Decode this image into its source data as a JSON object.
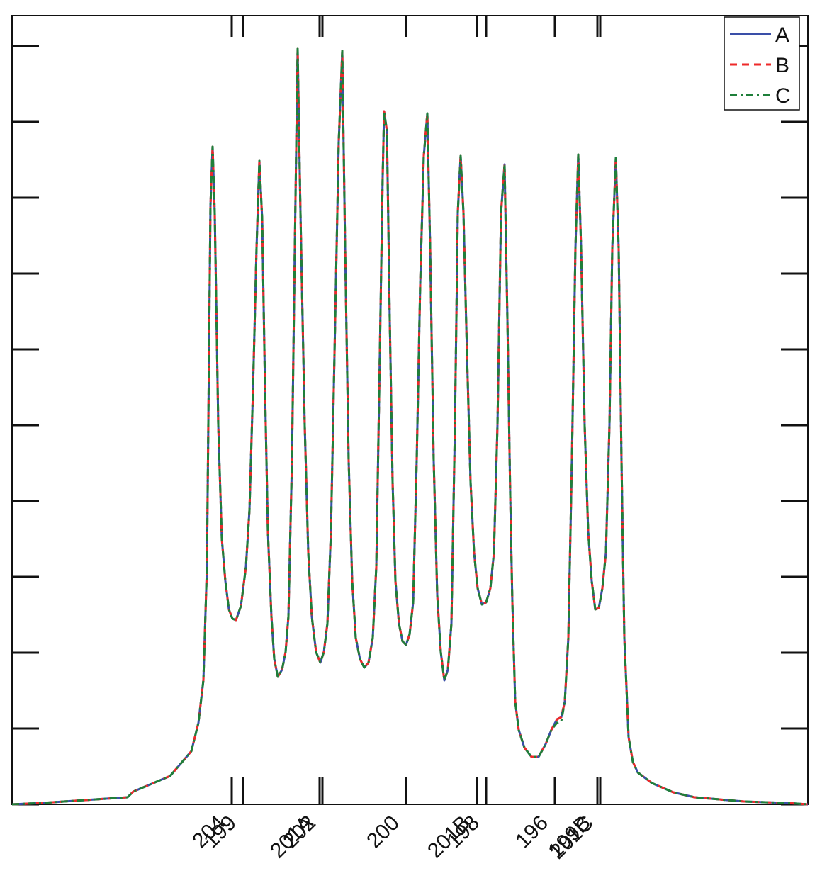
{
  "chart_data": {
    "type": "line",
    "x": [
      0,
      43,
      163,
      171,
      223,
      253,
      263,
      270,
      275,
      280,
      283,
      286,
      291,
      296,
      301,
      306,
      311,
      316,
      323,
      330,
      335,
      340,
      345,
      349,
      353,
      357,
      361,
      366,
      370,
      375,
      381,
      386,
      390,
      395,
      399,
      403,
      407,
      413,
      418,
      423,
      429,
      435,
      440,
      445,
      450,
      455,
      461,
      466,
      470,
      475,
      480,
      485,
      491,
      497,
      503,
      509,
      514,
      519,
      523,
      525,
      529,
      533,
      537,
      541,
      546,
      551,
      556,
      561,
      566,
      571,
      576,
      581,
      586,
      590,
      595,
      600,
      605,
      610,
      615,
      620,
      625,
      629,
      633,
      637,
      642,
      647,
      652,
      657,
      663,
      669,
      675,
      680,
      685,
      690,
      695,
      699,
      703,
      706,
      710,
      715,
      723,
      733,
      743,
      753,
      761,
      769,
      775,
      780,
      785,
      790,
      795,
      799,
      803,
      808,
      813,
      818,
      823,
      828,
      833,
      838,
      843,
      847,
      852,
      856,
      860,
      864,
      870,
      876,
      883,
      903,
      933,
      963,
      1033,
      1093,
      1123
    ],
    "series": [
      {
        "name": "A",
        "color": "#3a4fa8",
        "dash": "solid",
        "values": [
          0,
          2,
          10,
          18,
          40,
          75,
          115,
          175,
          335,
          845,
          928,
          835,
          535,
          375,
          315,
          275,
          262,
          260,
          280,
          335,
          415,
          585,
          785,
          908,
          825,
          585,
          385,
          265,
          205,
          180,
          190,
          215,
          265,
          485,
          785,
          1066,
          835,
          535,
          355,
          265,
          215,
          200,
          215,
          255,
          385,
          635,
          935,
          1063,
          785,
          485,
          315,
          235,
          205,
          193,
          200,
          235,
          335,
          635,
          885,
          978,
          950,
          685,
          455,
          315,
          255,
          230,
          225,
          240,
          285,
          485,
          735,
          915,
          975,
          785,
          485,
          295,
          215,
          175,
          190,
          255,
          535,
          835,
          915,
          835,
          635,
          455,
          355,
          305,
          282,
          285,
          305,
          355,
          535,
          835,
          903,
          685,
          435,
          285,
          145,
          105,
          80,
          67,
          67,
          85,
          105,
          120,
          123,
          145,
          235,
          485,
          785,
          917,
          785,
          535,
          385,
          315,
          275,
          277,
          305,
          355,
          535,
          785,
          912,
          785,
          485,
          235,
          95,
          60,
          45,
          30,
          17,
          10,
          4,
          2,
          0
        ]
      },
      {
        "name": "B",
        "color": "#ee2a2a",
        "dash": "dashed",
        "values": [
          0,
          2,
          10,
          18,
          40,
          75,
          115,
          175,
          335,
          845,
          928,
          835,
          535,
          375,
          315,
          275,
          262,
          260,
          280,
          335,
          415,
          585,
          785,
          908,
          825,
          585,
          385,
          265,
          205,
          180,
          190,
          215,
          265,
          485,
          785,
          1066,
          835,
          535,
          355,
          265,
          215,
          200,
          215,
          255,
          385,
          635,
          935,
          1063,
          785,
          485,
          315,
          235,
          205,
          193,
          200,
          235,
          335,
          635,
          885,
          978,
          950,
          685,
          455,
          315,
          255,
          230,
          225,
          240,
          285,
          485,
          735,
          915,
          975,
          785,
          485,
          295,
          215,
          175,
          190,
          255,
          535,
          835,
          915,
          835,
          635,
          455,
          355,
          305,
          282,
          285,
          305,
          355,
          535,
          835,
          903,
          685,
          435,
          285,
          145,
          105,
          80,
          67,
          67,
          85,
          105,
          120,
          123,
          145,
          235,
          485,
          785,
          917,
          785,
          535,
          385,
          315,
          275,
          277,
          305,
          355,
          535,
          785,
          912,
          785,
          485,
          235,
          95,
          60,
          45,
          30,
          17,
          10,
          4,
          2,
          0
        ]
      },
      {
        "name": "C",
        "color": "#1f7f3a",
        "dash": "dashdot",
        "values": [
          0,
          2,
          10,
          18,
          40,
          75,
          115,
          175,
          335,
          845,
          928,
          835,
          535,
          375,
          315,
          275,
          262,
          260,
          280,
          335,
          415,
          585,
          785,
          908,
          825,
          585,
          385,
          265,
          205,
          180,
          190,
          215,
          265,
          485,
          785,
          1066,
          835,
          535,
          355,
          265,
          215,
          200,
          215,
          255,
          385,
          635,
          935,
          1063,
          785,
          485,
          315,
          235,
          205,
          193,
          200,
          235,
          335,
          635,
          885,
          978,
          950,
          685,
          455,
          315,
          255,
          230,
          225,
          240,
          285,
          485,
          735,
          915,
          975,
          785,
          485,
          295,
          215,
          175,
          190,
          255,
          535,
          835,
          915,
          835,
          635,
          455,
          355,
          305,
          282,
          285,
          305,
          355,
          535,
          835,
          903,
          685,
          435,
          285,
          145,
          105,
          80,
          67,
          67,
          85,
          105,
          115,
          117,
          145,
          235,
          485,
          785,
          917,
          785,
          535,
          385,
          315,
          275,
          277,
          305,
          355,
          535,
          785,
          912,
          785,
          485,
          235,
          95,
          60,
          45,
          30,
          17,
          10,
          4,
          2,
          0
        ]
      }
    ],
    "xlim": [
      0,
      1123
    ],
    "ylim": [
      0,
      1113
    ],
    "xticks": [
      {
        "value": 310,
        "label": "204"
      },
      {
        "value": 326,
        "label": "199"
      },
      {
        "value": 434,
        "label": "201A"
      },
      {
        "value": 438,
        "label": "202"
      },
      {
        "value": 556,
        "label": "200"
      },
      {
        "value": 656,
        "label": "201B"
      },
      {
        "value": 669,
        "label": "198"
      },
      {
        "value": 766,
        "label": "196"
      },
      {
        "value": 826,
        "label": "199B"
      },
      {
        "value": 830,
        "label": "201C"
      }
    ],
    "yticks": [
      0,
      107,
      214,
      321,
      428,
      535,
      642,
      749,
      856,
      963,
      1070
    ],
    "legend": "upper-right"
  }
}
